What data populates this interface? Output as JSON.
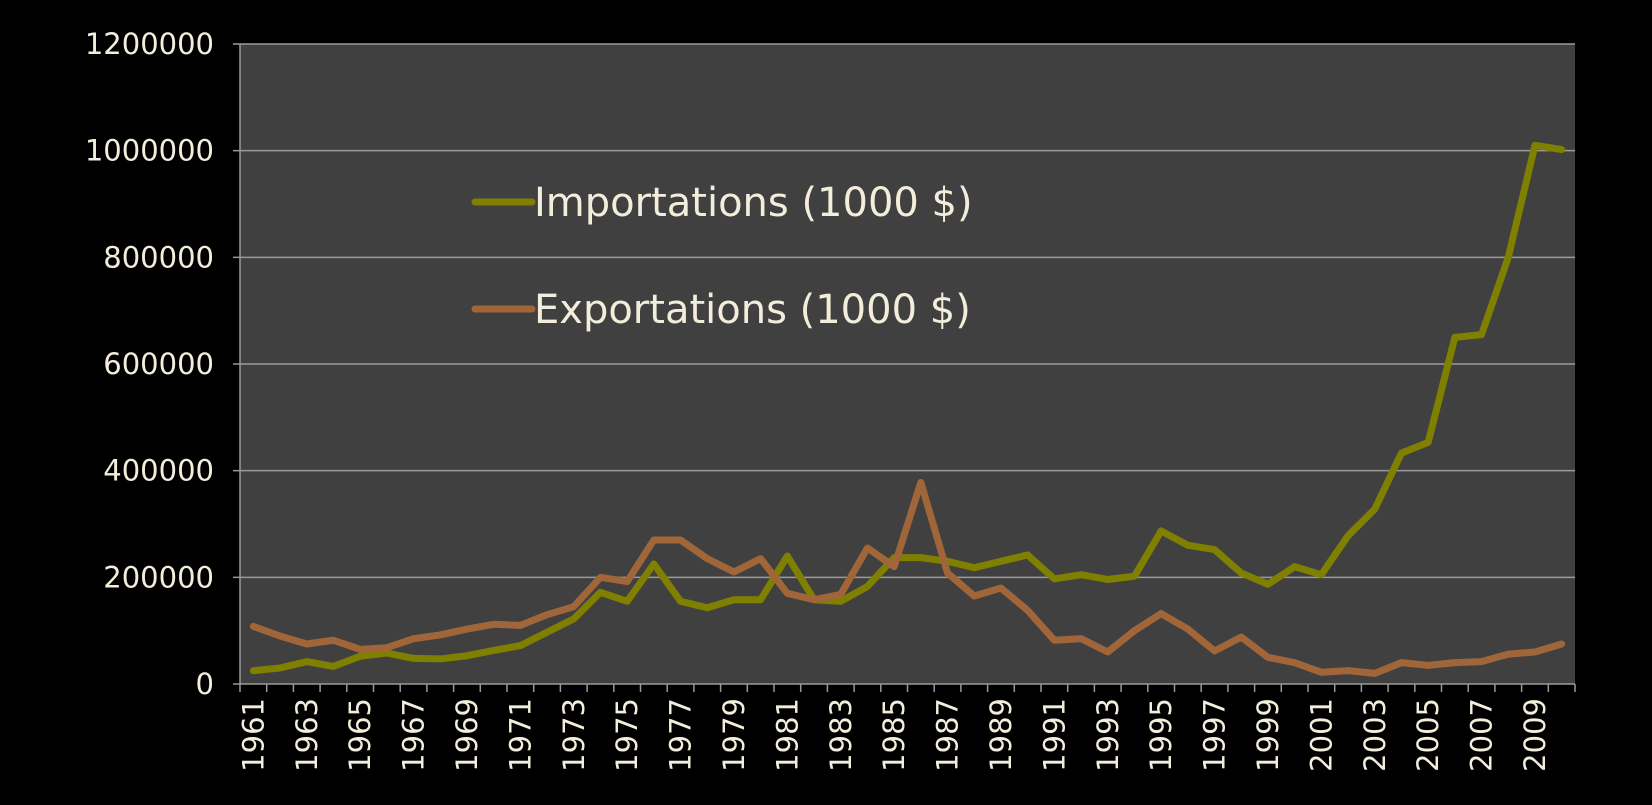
{
  "chart_data": {
    "type": "line",
    "categories": [
      "1961",
      null,
      "1963",
      null,
      "1965",
      null,
      "1967",
      null,
      "1969",
      null,
      "1971",
      null,
      "1973",
      null,
      "1975",
      null,
      "1977",
      null,
      "1979",
      null,
      "1981",
      null,
      "1983",
      null,
      "1985",
      null,
      "1987",
      null,
      "1989",
      null,
      "1991",
      null,
      "1993",
      null,
      "1995",
      null,
      "1997",
      null,
      "1999",
      null,
      "2001",
      null,
      "2003",
      null,
      "2005",
      null,
      "2007",
      null,
      "2009",
      null
    ],
    "series": [
      {
        "name": "Importations (1000 $)",
        "color": "#7f8000",
        "values": [
          25000,
          30000,
          42000,
          33000,
          52000,
          58000,
          48000,
          47000,
          53000,
          63000,
          72000,
          97000,
          122000,
          172000,
          155000,
          225000,
          155000,
          143000,
          158000,
          158000,
          240000,
          158000,
          155000,
          183000,
          237000,
          237000,
          230000,
          218000,
          230000,
          242000,
          197000,
          205000,
          196000,
          202000,
          287000,
          260000,
          252000,
          208000,
          187000,
          220000,
          205000,
          278000,
          328000,
          433000,
          453000,
          650000,
          655000,
          800000,
          1010000,
          1002000
        ]
      },
      {
        "name": "Exportations (1000 $)",
        "color": "#a0663a",
        "values": [
          108000,
          90000,
          75000,
          82000,
          65000,
          68000,
          85000,
          92000,
          103000,
          112000,
          110000,
          130000,
          145000,
          200000,
          192000,
          270000,
          270000,
          235000,
          210000,
          235000,
          170000,
          158000,
          168000,
          255000,
          220000,
          378000,
          208000,
          165000,
          180000,
          138000,
          82000,
          85000,
          60000,
          100000,
          132000,
          103000,
          62000,
          88000,
          50000,
          40000,
          22000,
          25000,
          20000,
          40000,
          35000,
          40000,
          42000,
          56000,
          60000,
          75000
        ]
      }
    ],
    "ylim": [
      0,
      1200000
    ],
    "yticks": [
      0,
      200000,
      400000,
      600000,
      800000,
      1000000,
      1200000
    ],
    "grid": true
  }
}
